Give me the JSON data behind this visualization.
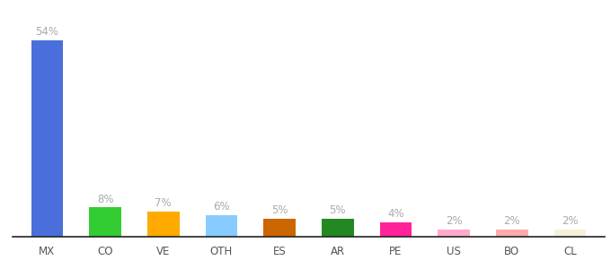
{
  "categories": [
    "MX",
    "CO",
    "VE",
    "OTH",
    "ES",
    "AR",
    "PE",
    "US",
    "BO",
    "CL"
  ],
  "values": [
    54,
    8,
    7,
    6,
    5,
    5,
    4,
    2,
    2,
    2
  ],
  "labels": [
    "54%",
    "8%",
    "7%",
    "6%",
    "5%",
    "5%",
    "4%",
    "2%",
    "2%",
    "2%"
  ],
  "colors": [
    "#4a6fdb",
    "#33cc33",
    "#ffaa00",
    "#88ccff",
    "#cc6600",
    "#228822",
    "#ff2299",
    "#ffaacc",
    "#ffaaaa",
    "#f5f0d8"
  ],
  "ylim": [
    0,
    62
  ],
  "background_color": "#ffffff",
  "label_color": "#aaaaaa",
  "label_fontsize": 8.5,
  "tick_fontsize": 8.5,
  "tick_color": "#555555",
  "bar_width": 0.55,
  "bottom_spine_color": "#222222"
}
